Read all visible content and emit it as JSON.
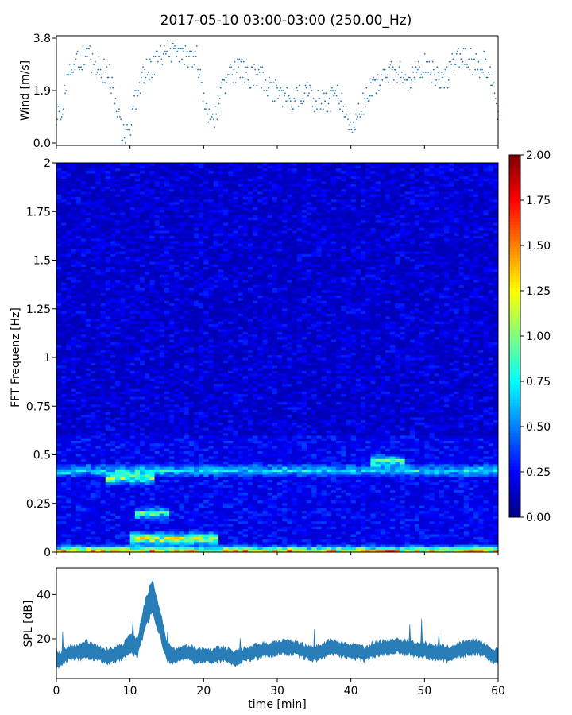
{
  "title": "2017-05-10 03:00-03:00 (250.00_Hz)",
  "chart_data": [
    {
      "type": "scatter",
      "ylabel": "Wind [m/s]",
      "xlim": [
        0,
        60
      ],
      "ylim": [
        0.0,
        3.8
      ],
      "yticks": [
        "0.0",
        "1.9",
        "3.8"
      ],
      "color": "#1f77b4",
      "series": [
        {
          "x": [
            0,
            1,
            2,
            3,
            4,
            5,
            6,
            7,
            8,
            9,
            10,
            11,
            12,
            13,
            14,
            15,
            16,
            17,
            18,
            19,
            20,
            21,
            22,
            23,
            24,
            25,
            26,
            27,
            28,
            29,
            30,
            31,
            32,
            33,
            34,
            35,
            36,
            37,
            38,
            39,
            40,
            41,
            42,
            43,
            44,
            45,
            46,
            47,
            48,
            49,
            50,
            51,
            52,
            53,
            54,
            55,
            56,
            57,
            58,
            59,
            60
          ],
          "y": [
            0.8,
            1.5,
            2.8,
            3.0,
            3.2,
            3.0,
            2.6,
            2.6,
            1.6,
            0.4,
            0.3,
            2.0,
            2.5,
            2.7,
            3.3,
            3.3,
            3.2,
            3.1,
            3.2,
            3.2,
            1.6,
            0.6,
            1.4,
            2.3,
            2.5,
            2.7,
            2.4,
            2.5,
            2.3,
            2.0,
            1.9,
            1.6,
            1.5,
            1.7,
            1.9,
            1.5,
            1.6,
            1.5,
            1.8,
            1.4,
            0.3,
            1.2,
            1.6,
            1.9,
            2.2,
            2.4,
            2.6,
            2.5,
            2.2,
            2.5,
            2.8,
            2.6,
            2.4,
            2.3,
            3.0,
            3.1,
            3.0,
            2.8,
            2.9,
            2.4,
            1.0
          ]
        }
      ]
    },
    {
      "type": "heatmap",
      "ylabel": "FFT Frequenz [Hz]",
      "xlim": [
        0,
        60
      ],
      "ylim": [
        0,
        2
      ],
      "yticks": [
        "0",
        "0.25",
        "0.5",
        "0.75",
        "1",
        "1.25",
        "1.5",
        "1.75",
        "2"
      ],
      "colormap": "jet",
      "colorbar": {
        "min": 0.0,
        "max": 2.0,
        "ticks": [
          "0.00",
          "0.25",
          "0.50",
          "0.75",
          "1.00",
          "1.25",
          "1.50",
          "1.75",
          "2.00"
        ]
      },
      "features": [
        {
          "freq": 0.0,
          "minutes": [
            0,
            60
          ],
          "level": 1.6
        },
        {
          "freq": 0.07,
          "minutes": [
            10,
            22
          ],
          "level": 1.2
        },
        {
          "freq": 0.2,
          "minutes": [
            11,
            15
          ],
          "level": 0.9
        },
        {
          "freq": 0.38,
          "minutes": [
            7,
            13
          ],
          "level": 1.0
        },
        {
          "freq": 0.42,
          "minutes": [
            0,
            60
          ],
          "level": 0.6
        },
        {
          "freq": 0.47,
          "minutes": [
            43,
            47
          ],
          "level": 0.8
        }
      ]
    },
    {
      "type": "area",
      "ylabel": "SPL [dB]",
      "xlabel": "time [min]",
      "xlim": [
        0,
        60
      ],
      "ylim": [
        2,
        52
      ],
      "yticks": [
        "20",
        "40"
      ],
      "xticks": [
        "0",
        "10",
        "20",
        "30",
        "40",
        "50",
        "60"
      ],
      "color": "#1f77b4",
      "series": [
        {
          "x": [
            0,
            1,
            2,
            3,
            4,
            5,
            6,
            7,
            8,
            9,
            10,
            11,
            12,
            13,
            14,
            15,
            16,
            17,
            18,
            19,
            20,
            21,
            22,
            23,
            24,
            25,
            26,
            27,
            28,
            29,
            30,
            31,
            32,
            33,
            34,
            35,
            36,
            37,
            38,
            39,
            40,
            41,
            42,
            43,
            44,
            45,
            46,
            47,
            48,
            49,
            50,
            51,
            52,
            53,
            54,
            55,
            56,
            57,
            58,
            59,
            60
          ],
          "y": [
            10,
            12,
            14,
            14,
            15,
            14,
            13,
            12,
            13,
            14,
            18,
            16,
            30,
            40,
            28,
            14,
            12,
            13,
            14,
            12,
            13,
            12,
            13,
            13,
            11,
            12,
            13,
            14,
            15,
            15,
            16,
            16,
            16,
            15,
            14,
            13,
            14,
            16,
            16,
            15,
            14,
            14,
            13,
            15,
            16,
            16,
            17,
            16,
            16,
            15,
            15,
            14,
            14,
            13,
            14,
            15,
            16,
            16,
            15,
            13,
            12
          ],
          "spread": [
            3,
            3,
            3,
            3,
            4,
            3,
            3,
            3,
            3,
            3,
            4,
            4,
            6,
            7,
            6,
            4,
            3,
            3,
            3,
            3,
            3,
            3,
            3,
            3,
            3,
            3,
            3,
            3,
            3,
            3,
            3,
            3,
            3,
            3,
            3,
            3,
            3,
            3,
            3,
            3,
            3,
            3,
            3,
            3,
            3,
            3,
            3,
            3,
            3,
            3,
            3,
            3,
            3,
            3,
            3,
            3,
            3,
            3,
            3,
            3,
            3
          ]
        }
      ]
    }
  ]
}
